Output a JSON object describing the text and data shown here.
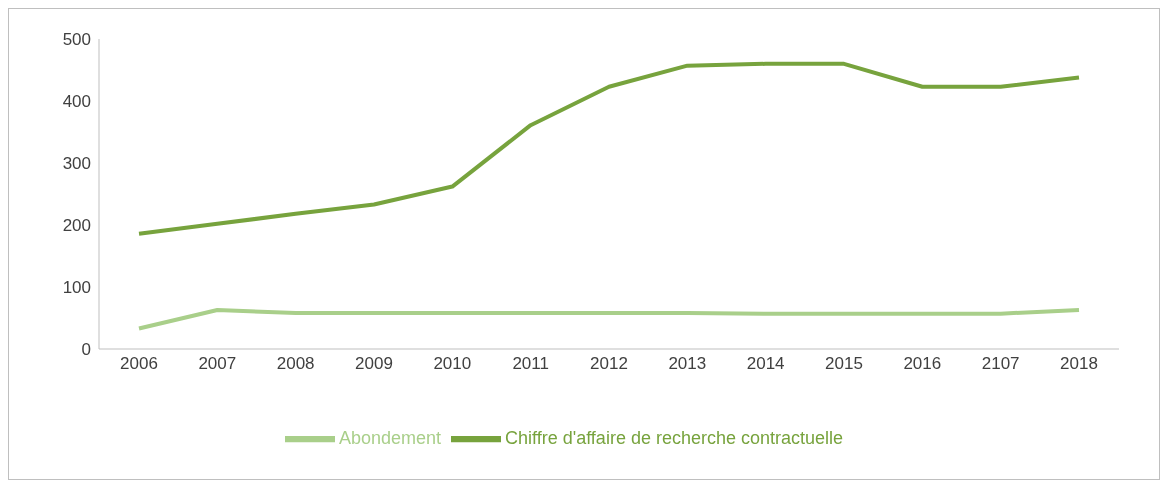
{
  "chart_data": {
    "type": "line",
    "categories": [
      "2006",
      "2007",
      "2008",
      "2009",
      "2010",
      "2011",
      "2012",
      "2013",
      "2014",
      "2015",
      "2016",
      "2107",
      "2018"
    ],
    "series": [
      {
        "name": "Chiffre d'affaire de recherche contractuelle",
        "color": "#77a33d",
        "values": [
          186,
          202,
          218,
          233,
          262,
          361,
          423,
          457,
          460,
          460,
          423,
          423,
          438
        ]
      },
      {
        "name": "Abondement",
        "color": "#a9cf8a",
        "values": [
          33,
          63,
          58,
          58,
          58,
          58,
          58,
          58,
          57,
          57,
          57,
          57,
          63
        ]
      }
    ],
    "ylim": [
      0,
      500
    ],
    "yticks": [
      0,
      100,
      200,
      300,
      400,
      500
    ],
    "grid": false,
    "legend": "bottom",
    "marker": "none",
    "line_style": "solid"
  }
}
